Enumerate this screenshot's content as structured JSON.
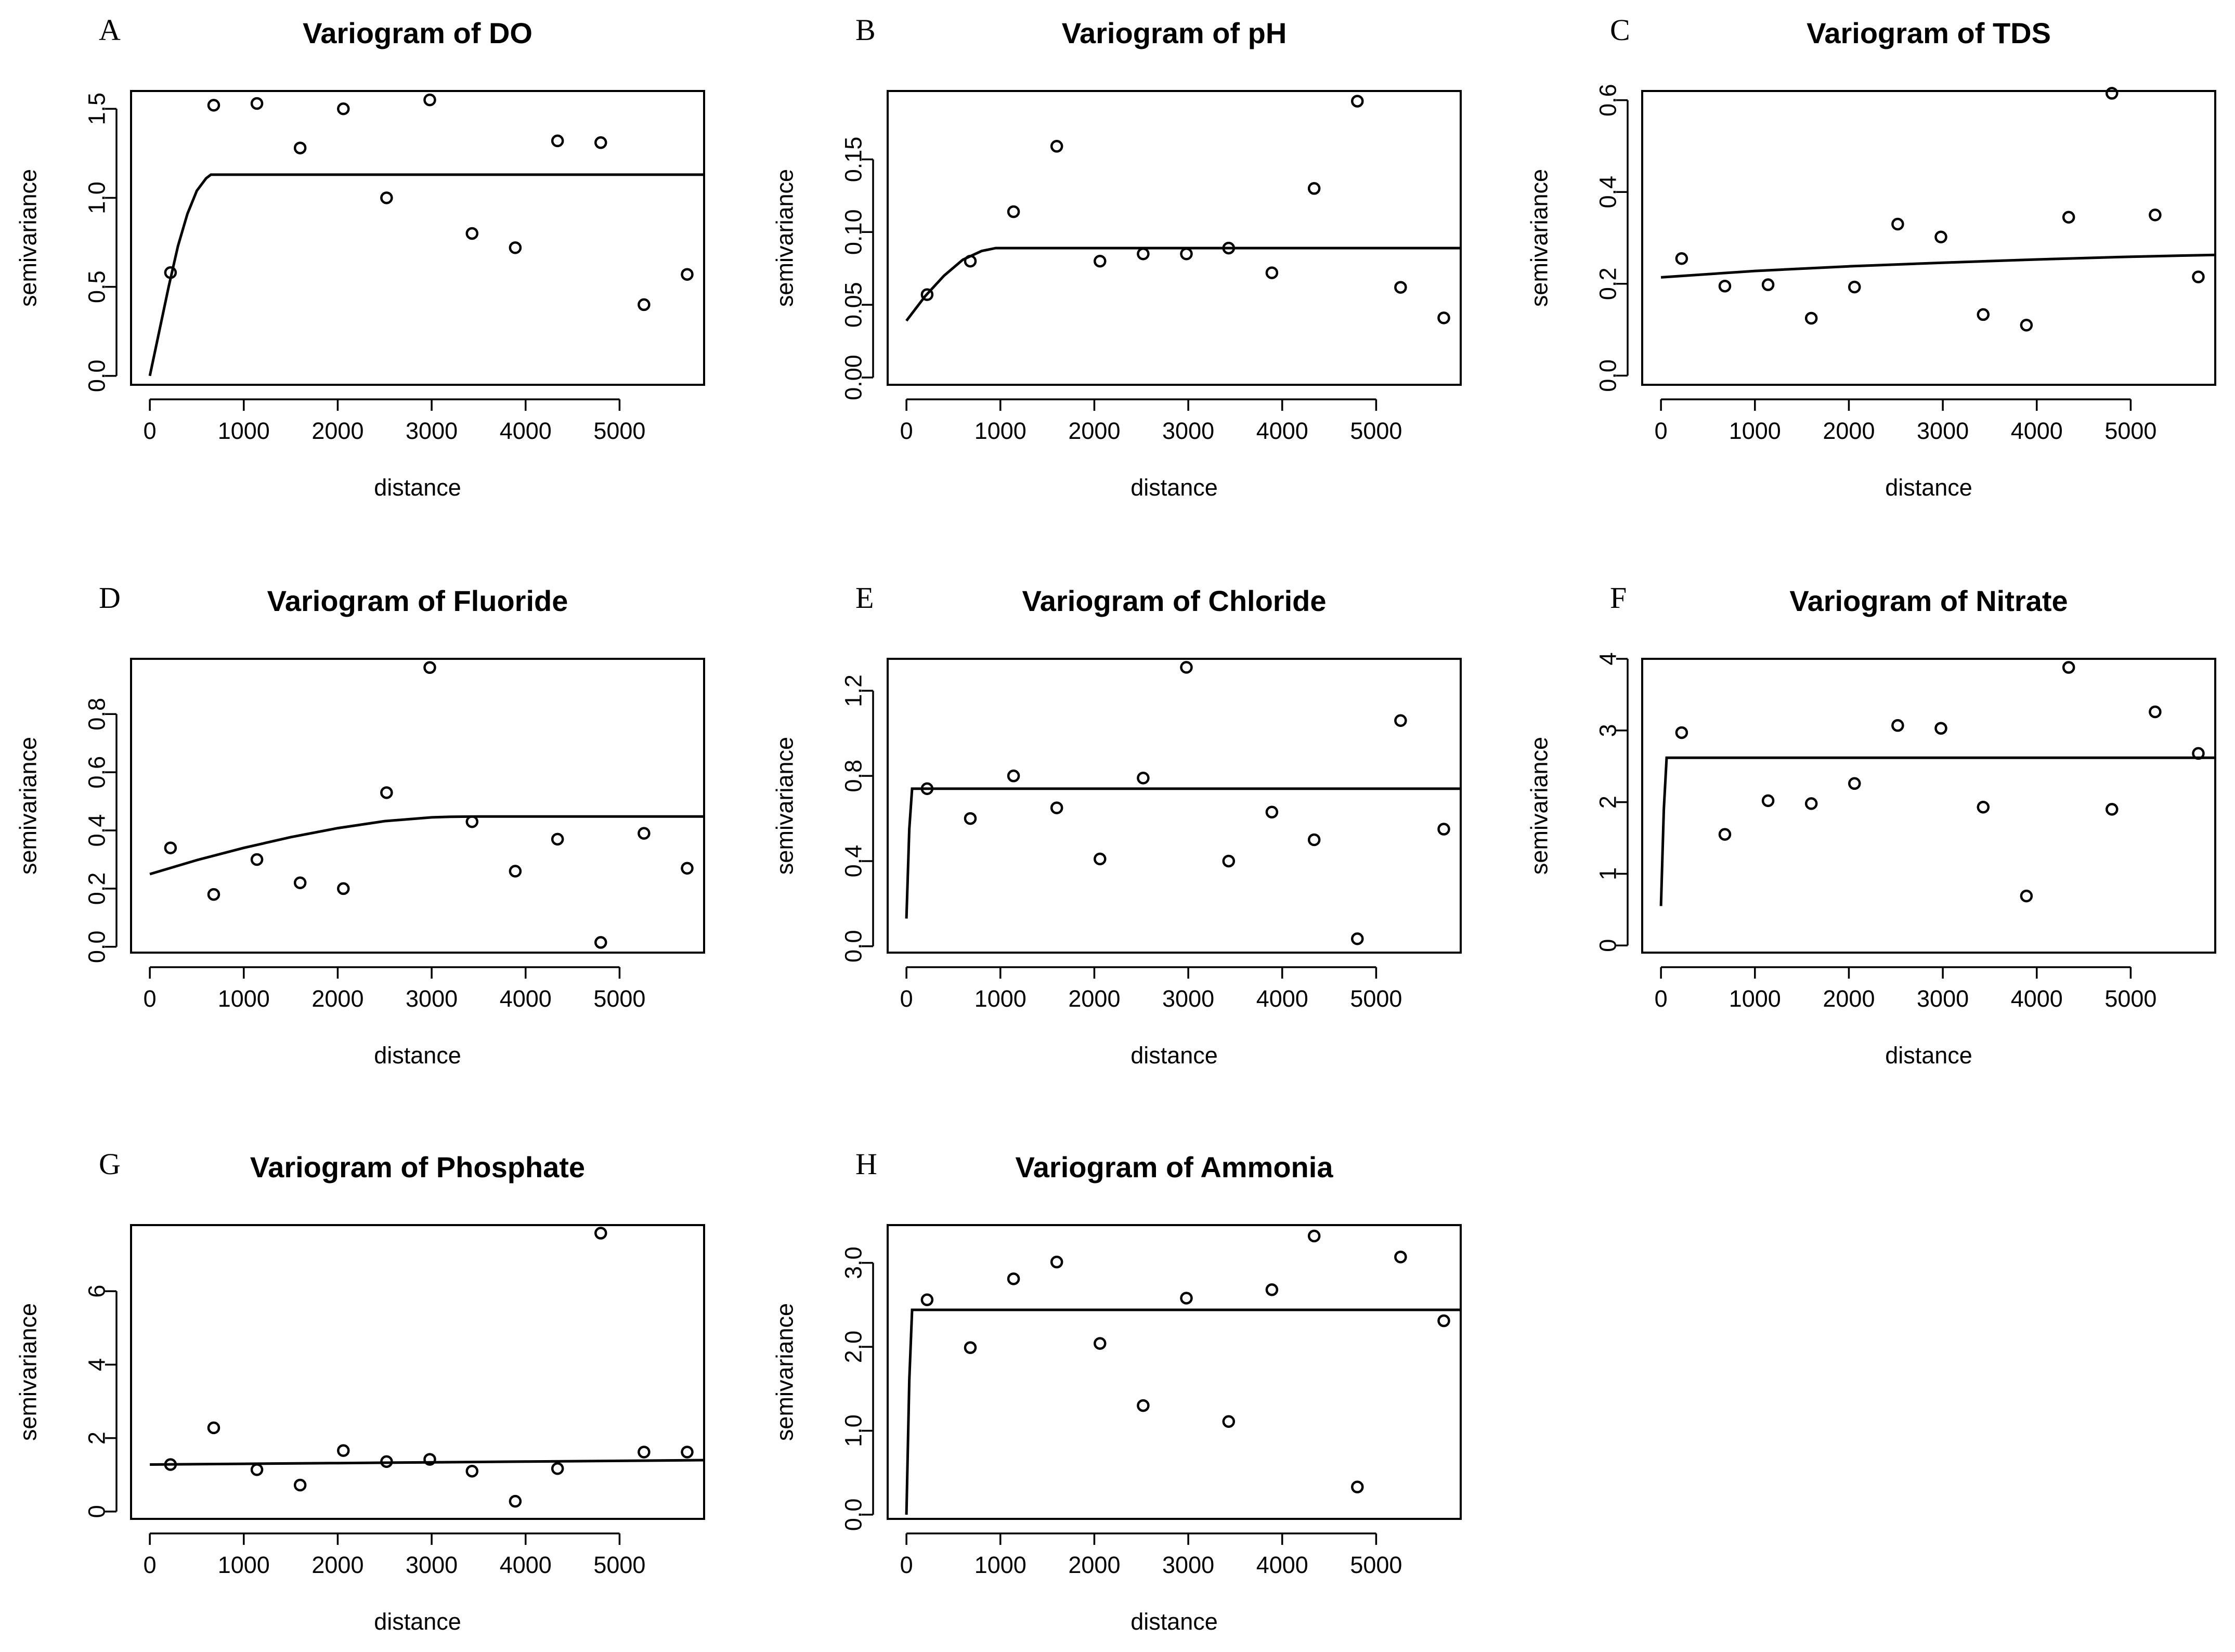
{
  "figure": {
    "background": "#ffffff",
    "ink": "#000000",
    "xlabel": "distance",
    "ylabel": "semivariance"
  },
  "chart_data": [
    {
      "type": "scatter",
      "panel": "A",
      "title": "Variogram of DO",
      "xlabel": "distance",
      "ylabel": "semivariance",
      "xlim": [
        -200,
        5900
      ],
      "ylim": [
        -0.05,
        1.6
      ],
      "xticks": [
        0,
        1000,
        2000,
        3000,
        4000,
        5000
      ],
      "yticks": [
        0.0,
        0.5,
        1.0,
        1.5
      ],
      "ytick_labels": [
        "0.0",
        "0.5",
        "1.0",
        "1.5"
      ],
      "points": {
        "x": [
          220,
          680,
          1140,
          1600,
          2060,
          2520,
          2980,
          3430,
          3890,
          4340,
          4800,
          5260,
          5720
        ],
        "y": [
          0.58,
          1.52,
          1.53,
          1.28,
          1.5,
          1.0,
          1.55,
          0.8,
          0.72,
          1.32,
          1.31,
          0.4,
          0.57
        ]
      },
      "model_line": {
        "x": [
          0,
          100,
          200,
          300,
          400,
          500,
          600,
          650,
          700,
          5900
        ],
        "y": [
          0.0,
          0.25,
          0.5,
          0.73,
          0.91,
          1.04,
          1.11,
          1.13,
          1.13,
          1.13
        ]
      }
    },
    {
      "type": "scatter",
      "panel": "B",
      "title": "Variogram of pH",
      "xlabel": "distance",
      "ylabel": "semivariance",
      "xlim": [
        -200,
        5900
      ],
      "ylim": [
        -0.005,
        0.197
      ],
      "xticks": [
        0,
        1000,
        2000,
        3000,
        4000,
        5000
      ],
      "yticks": [
        0.0,
        0.05,
        0.1,
        0.15
      ],
      "ytick_labels": [
        "0.00",
        "0.05",
        "0.10",
        "0.15"
      ],
      "points": {
        "x": [
          220,
          680,
          1140,
          1600,
          2060,
          2520,
          2980,
          3430,
          3890,
          4340,
          4800,
          5260,
          5720
        ],
        "y": [
          0.057,
          0.08,
          0.114,
          0.159,
          0.08,
          0.085,
          0.085,
          0.089,
          0.072,
          0.13,
          0.19,
          0.062,
          0.041
        ]
      },
      "model_line": {
        "x": [
          0,
          200,
          400,
          600,
          800,
          950,
          1100,
          5900
        ],
        "y": [
          0.039,
          0.056,
          0.07,
          0.081,
          0.087,
          0.089,
          0.089,
          0.089
        ]
      }
    },
    {
      "type": "scatter",
      "panel": "C",
      "title": "Variogram of TDS",
      "xlabel": "distance",
      "ylabel": "semivariance",
      "xlim": [
        -200,
        5900
      ],
      "ylim": [
        -0.02,
        0.62
      ],
      "xticks": [
        0,
        1000,
        2000,
        3000,
        4000,
        5000
      ],
      "yticks": [
        0.0,
        0.2,
        0.4,
        0.6
      ],
      "ytick_labels": [
        "0.0",
        "0.2",
        "0.4",
        "0.6"
      ],
      "points": {
        "x": [
          220,
          680,
          1140,
          1600,
          2060,
          2520,
          2980,
          3430,
          3890,
          4340,
          4800,
          5260,
          5720
        ],
        "y": [
          0.255,
          0.195,
          0.198,
          0.125,
          0.193,
          0.33,
          0.302,
          0.133,
          0.11,
          0.345,
          0.615,
          0.35,
          0.215
        ]
      },
      "model_line": {
        "x": [
          0,
          1000,
          2000,
          3000,
          4000,
          5000,
          5900
        ],
        "y": [
          0.214,
          0.228,
          0.238,
          0.246,
          0.253,
          0.259,
          0.263
        ]
      }
    },
    {
      "type": "scatter",
      "panel": "D",
      "title": "Variogram of Fluoride",
      "xlabel": "distance",
      "ylabel": "semivariance",
      "xlim": [
        -200,
        5900
      ],
      "ylim": [
        -0.02,
        0.99
      ],
      "xticks": [
        0,
        1000,
        2000,
        3000,
        4000,
        5000
      ],
      "yticks": [
        0.0,
        0.2,
        0.4,
        0.6,
        0.8
      ],
      "ytick_labels": [
        "0.0",
        "0.2",
        "0.4",
        "0.6",
        "0.8"
      ],
      "points": {
        "x": [
          220,
          680,
          1140,
          1600,
          2060,
          2520,
          2980,
          3430,
          3890,
          4340,
          4800,
          5260,
          5720
        ],
        "y": [
          0.34,
          0.18,
          0.3,
          0.22,
          0.2,
          0.53,
          0.96,
          0.43,
          0.26,
          0.37,
          0.015,
          0.39,
          0.27
        ]
      },
      "model_line": {
        "x": [
          0,
          500,
          1000,
          1500,
          2000,
          2500,
          3000,
          3200,
          3500,
          5900
        ],
        "y": [
          0.25,
          0.298,
          0.34,
          0.377,
          0.408,
          0.432,
          0.445,
          0.447,
          0.448,
          0.448
        ]
      }
    },
    {
      "type": "scatter",
      "panel": "E",
      "title": "Variogram of Chloride",
      "xlabel": "distance",
      "ylabel": "semivariance",
      "xlim": [
        -200,
        5900
      ],
      "ylim": [
        -0.03,
        1.35
      ],
      "xticks": [
        0,
        1000,
        2000,
        3000,
        4000,
        5000
      ],
      "yticks": [
        0.0,
        0.4,
        0.8,
        1.2
      ],
      "ytick_labels": [
        "0.0",
        "0.4",
        "0.8",
        "1.2"
      ],
      "points": {
        "x": [
          220,
          680,
          1140,
          1600,
          2060,
          2520,
          2980,
          3430,
          3890,
          4340,
          4800,
          5260,
          5720
        ],
        "y": [
          0.74,
          0.6,
          0.8,
          0.65,
          0.41,
          0.79,
          1.31,
          0.4,
          0.63,
          0.5,
          0.035,
          1.06,
          0.55
        ]
      },
      "model_line": {
        "x": [
          0,
          30,
          60,
          5900
        ],
        "y": [
          0.13,
          0.55,
          0.74,
          0.74
        ]
      }
    },
    {
      "type": "scatter",
      "panel": "F",
      "title": "Variogram of Nitrate",
      "xlabel": "distance",
      "ylabel": "semivariance",
      "xlim": [
        -200,
        5900
      ],
      "ylim": [
        -0.1,
        4.0
      ],
      "xticks": [
        0,
        1000,
        2000,
        3000,
        4000,
        5000
      ],
      "yticks": [
        0,
        1,
        2,
        3,
        4
      ],
      "ytick_labels": [
        "0",
        "1",
        "2",
        "3",
        "4"
      ],
      "points": {
        "x": [
          220,
          680,
          1140,
          1600,
          2060,
          2520,
          2980,
          3430,
          3890,
          4340,
          4800,
          5260,
          5720
        ],
        "y": [
          2.97,
          1.55,
          2.02,
          1.98,
          2.26,
          3.07,
          3.03,
          1.93,
          0.69,
          3.88,
          1.9,
          3.26,
          2.68
        ]
      },
      "model_line": {
        "x": [
          0,
          30,
          60,
          5900
        ],
        "y": [
          0.55,
          1.9,
          2.62,
          2.62
        ]
      }
    },
    {
      "type": "scatter",
      "panel": "G",
      "title": "Variogram of Phosphate",
      "xlabel": "distance",
      "ylabel": "semivariance",
      "xlim": [
        -200,
        5900
      ],
      "ylim": [
        -0.2,
        7.8
      ],
      "xticks": [
        0,
        1000,
        2000,
        3000,
        4000,
        5000
      ],
      "yticks": [
        0,
        2,
        4,
        6
      ],
      "ytick_labels": [
        "0",
        "2",
        "4",
        "6"
      ],
      "points": {
        "x": [
          220,
          680,
          1140,
          1600,
          2060,
          2520,
          2980,
          3430,
          3890,
          4340,
          4800,
          5260,
          5720
        ],
        "y": [
          1.28,
          2.28,
          1.14,
          0.72,
          1.66,
          1.36,
          1.42,
          1.1,
          0.28,
          1.17,
          7.58,
          1.62,
          1.62
        ]
      },
      "model_line": {
        "x": [
          0,
          1000,
          2000,
          3000,
          4000,
          5000,
          5900
        ],
        "y": [
          1.28,
          1.3,
          1.32,
          1.34,
          1.36,
          1.38,
          1.4
        ]
      }
    },
    {
      "type": "scatter",
      "panel": "H",
      "title": "Variogram of Ammonia",
      "xlabel": "distance",
      "ylabel": "semivariance",
      "xlim": [
        -200,
        5900
      ],
      "ylim": [
        -0.05,
        3.45
      ],
      "xticks": [
        0,
        1000,
        2000,
        3000,
        4000,
        5000
      ],
      "yticks": [
        0.0,
        1.0,
        2.0,
        3.0
      ],
      "ytick_labels": [
        "0.0",
        "1.0",
        "2.0",
        "3.0"
      ],
      "points": {
        "x": [
          220,
          680,
          1140,
          1600,
          2060,
          2520,
          2980,
          3430,
          3890,
          4340,
          4800,
          5260,
          5720
        ],
        "y": [
          2.56,
          1.99,
          2.81,
          3.01,
          2.04,
          1.3,
          2.58,
          1.11,
          2.68,
          3.32,
          0.33,
          3.07,
          2.31
        ]
      },
      "model_line": {
        "x": [
          0,
          30,
          60,
          5900
        ],
        "y": [
          0.0,
          1.6,
          2.44,
          2.44
        ]
      }
    }
  ]
}
